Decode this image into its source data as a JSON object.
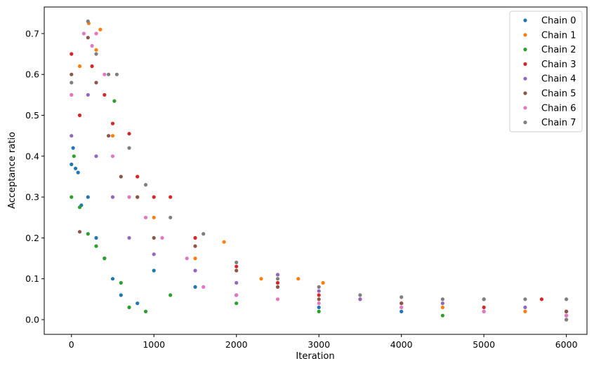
{
  "chart_data": {
    "type": "scatter",
    "xlabel": "Iteration",
    "ylabel": "Acceptance ratio",
    "xlim": [
      -330,
      6250
    ],
    "ylim": [
      -0.036,
      0.765
    ],
    "xticks": [
      0,
      1000,
      2000,
      3000,
      4000,
      5000,
      6000
    ],
    "xtick_labels": [
      "0",
      "1000",
      "2000",
      "3000",
      "4000",
      "5000",
      "6000"
    ],
    "yticks": [
      0.0,
      0.1,
      0.2,
      0.3,
      0.4,
      0.5,
      0.6,
      0.7
    ],
    "ytick_labels": [
      "0.0",
      "0.1",
      "0.2",
      "0.3",
      "0.4",
      "0.5",
      "0.6",
      "0.7"
    ],
    "grid": false,
    "legend_position": "top-right",
    "series": [
      {
        "name": "Chain 0",
        "color": "#1f77b4",
        "points": [
          [
            0,
            0.38
          ],
          [
            20,
            0.42
          ],
          [
            50,
            0.37
          ],
          [
            80,
            0.36
          ],
          [
            120,
            0.28
          ],
          [
            200,
            0.3
          ],
          [
            300,
            0.2
          ],
          [
            400,
            0.15
          ],
          [
            500,
            0.1
          ],
          [
            600,
            0.06
          ],
          [
            800,
            0.04
          ],
          [
            1000,
            0.12
          ],
          [
            1500,
            0.08
          ],
          [
            2000,
            0.06
          ],
          [
            3000,
            0.03
          ],
          [
            4000,
            0.02
          ],
          [
            5000,
            0.02
          ],
          [
            6000,
            0.01
          ]
        ]
      },
      {
        "name": "Chain 1",
        "color": "#ff7f0e",
        "points": [
          [
            0,
            0.55
          ],
          [
            100,
            0.62
          ],
          [
            210,
            0.725
          ],
          [
            300,
            0.66
          ],
          [
            350,
            0.71
          ],
          [
            500,
            0.45
          ],
          [
            800,
            0.3
          ],
          [
            1000,
            0.25
          ],
          [
            1500,
            0.15
          ],
          [
            1850,
            0.19
          ],
          [
            2300,
            0.1
          ],
          [
            2750,
            0.1
          ],
          [
            3050,
            0.09
          ],
          [
            3500,
            0.05
          ],
          [
            4500,
            0.03
          ],
          [
            5500,
            0.02
          ],
          [
            6000,
            0.01
          ]
        ]
      },
      {
        "name": "Chain 2",
        "color": "#2ca02c",
        "points": [
          [
            0,
            0.3
          ],
          [
            30,
            0.4
          ],
          [
            100,
            0.275
          ],
          [
            200,
            0.21
          ],
          [
            300,
            0.18
          ],
          [
            400,
            0.15
          ],
          [
            520,
            0.535
          ],
          [
            600,
            0.09
          ],
          [
            700,
            0.03
          ],
          [
            900,
            0.02
          ],
          [
            1200,
            0.06
          ],
          [
            2000,
            0.04
          ],
          [
            3000,
            0.02
          ],
          [
            4500,
            0.01
          ],
          [
            6000,
            0.0
          ]
        ]
      },
      {
        "name": "Chain 3",
        "color": "#d62728",
        "points": [
          [
            0,
            0.65
          ],
          [
            100,
            0.5
          ],
          [
            250,
            0.62
          ],
          [
            400,
            0.55
          ],
          [
            500,
            0.48
          ],
          [
            700,
            0.455
          ],
          [
            800,
            0.35
          ],
          [
            1000,
            0.3
          ],
          [
            1200,
            0.3
          ],
          [
            1500,
            0.2
          ],
          [
            2000,
            0.13
          ],
          [
            2500,
            0.09
          ],
          [
            3000,
            0.06
          ],
          [
            4000,
            0.04
          ],
          [
            5000,
            0.03
          ],
          [
            5700,
            0.05
          ],
          [
            6000,
            0.02
          ]
        ]
      },
      {
        "name": "Chain 4",
        "color": "#9467bd",
        "points": [
          [
            0,
            0.45
          ],
          [
            200,
            0.55
          ],
          [
            300,
            0.4
          ],
          [
            500,
            0.3
          ],
          [
            700,
            0.2
          ],
          [
            1000,
            0.16
          ],
          [
            1500,
            0.12
          ],
          [
            2000,
            0.09
          ],
          [
            2500,
            0.11
          ],
          [
            3000,
            0.07
          ],
          [
            3500,
            0.05
          ],
          [
            4500,
            0.04
          ],
          [
            5500,
            0.03
          ],
          [
            6000,
            0.02
          ]
        ]
      },
      {
        "name": "Chain 5",
        "color": "#8c564b",
        "points": [
          [
            0,
            0.6
          ],
          [
            100,
            0.215
          ],
          [
            200,
            0.69
          ],
          [
            300,
            0.58
          ],
          [
            450,
            0.45
          ],
          [
            600,
            0.35
          ],
          [
            800,
            0.3
          ],
          [
            1000,
            0.2
          ],
          [
            1500,
            0.18
          ],
          [
            2000,
            0.12
          ],
          [
            2500,
            0.08
          ],
          [
            3000,
            0.05
          ],
          [
            4000,
            0.04
          ],
          [
            5000,
            0.05
          ],
          [
            6000,
            0.02
          ]
        ]
      },
      {
        "name": "Chain 6",
        "color": "#e377c2",
        "points": [
          [
            0,
            0.55
          ],
          [
            150,
            0.7
          ],
          [
            250,
            0.67
          ],
          [
            300,
            0.7
          ],
          [
            400,
            0.6
          ],
          [
            500,
            0.4
          ],
          [
            700,
            0.3
          ],
          [
            900,
            0.25
          ],
          [
            1100,
            0.2
          ],
          [
            1400,
            0.15
          ],
          [
            1600,
            0.08
          ],
          [
            2000,
            0.06
          ],
          [
            2500,
            0.05
          ],
          [
            3000,
            0.04
          ],
          [
            4000,
            0.03
          ],
          [
            5000,
            0.02
          ],
          [
            6000,
            0.01
          ]
        ]
      },
      {
        "name": "Chain 7",
        "color": "#7f7f7f",
        "points": [
          [
            0,
            0.58
          ],
          [
            200,
            0.73
          ],
          [
            300,
            0.65
          ],
          [
            450,
            0.6
          ],
          [
            550,
            0.6
          ],
          [
            700,
            0.42
          ],
          [
            900,
            0.33
          ],
          [
            1200,
            0.25
          ],
          [
            1600,
            0.21
          ],
          [
            2000,
            0.14
          ],
          [
            2500,
            0.1
          ],
          [
            3000,
            0.08
          ],
          [
            3500,
            0.06
          ],
          [
            4000,
            0.055
          ],
          [
            4500,
            0.05
          ],
          [
            5000,
            0.05
          ],
          [
            5500,
            0.05
          ],
          [
            6000,
            0.05
          ],
          [
            6000,
            0.0
          ]
        ]
      }
    ]
  }
}
